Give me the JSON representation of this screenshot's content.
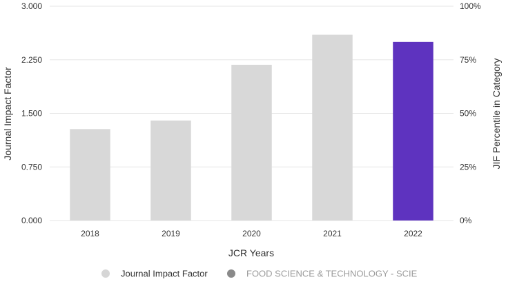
{
  "chart_data": {
    "type": "bar",
    "title": "",
    "categories": [
      "2018",
      "2019",
      "2020",
      "2021",
      "2022"
    ],
    "series": [
      {
        "name": "Journal Impact Factor",
        "values": [
          1.28,
          1.4,
          2.18,
          2.6,
          2.5
        ]
      }
    ],
    "highlight_category": "2022",
    "xlabel": "JCR Years",
    "ylabel": "Journal Impact Factor",
    "ylabel_right": "JIF Percentile in Category",
    "ylim": [
      0,
      3
    ],
    "yticks": [
      "0.000",
      "0.750",
      "1.500",
      "2.250",
      "3.000"
    ],
    "ylim_right": [
      0,
      100
    ],
    "yticks_right": [
      "0%",
      "25%",
      "50%",
      "75%",
      "100%"
    ],
    "grid": true,
    "legend": {
      "position": "bottom",
      "entries": [
        {
          "label": "Journal Impact Factor",
          "color": "#d6d6d6",
          "active": true
        },
        {
          "label": "FOOD SCIENCE & TECHNOLOGY - SCIE",
          "color": "#8a8a8a",
          "active": false
        }
      ]
    },
    "colors": {
      "bar": "#d8d8d8",
      "bar_highlight": "#5e33bf",
      "grid": "#e6e6e6",
      "text": "#333333",
      "legend_inactive_text": "#9a9a9a"
    }
  }
}
